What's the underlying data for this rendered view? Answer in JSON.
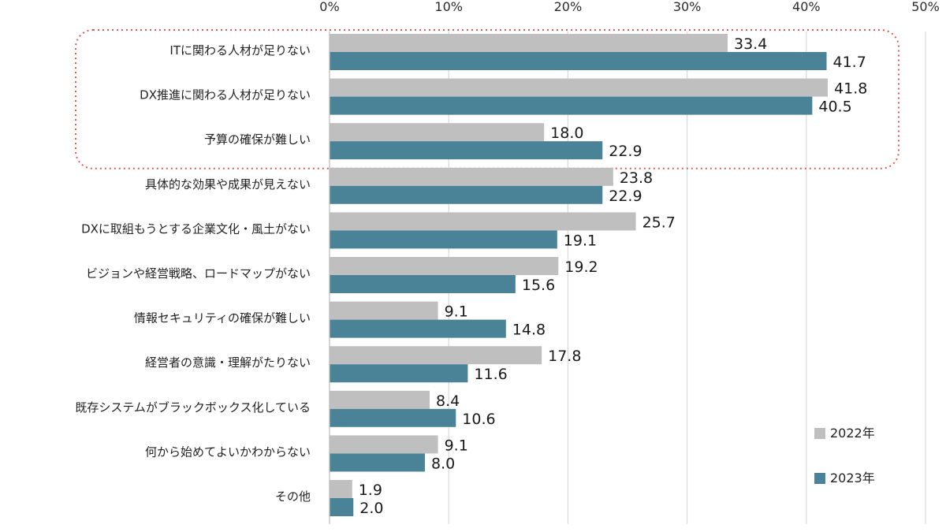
{
  "chart_data": {
    "type": "bar",
    "orientation": "horizontal",
    "categories": [
      "ITに関わる人材が足りない",
      "DX推進に関わる人材が足りない",
      "予算の確保が難しい",
      "具体的な効果や成果が見えない",
      "DXに取組もうとする企業文化・風土がない",
      "ビジョンや経営戦略、ロードマップがない",
      "情報セキュリティの確保が難しい",
      "経営者の意識・理解がたりない",
      "既存システムがブラックボックス化している",
      "何から始めてよいかわからない",
      "その他"
    ],
    "series": [
      {
        "name": "2022年",
        "color": "#bfbfbf",
        "values": [
          33.4,
          41.8,
          18.0,
          23.8,
          25.7,
          19.2,
          9.1,
          17.8,
          8.4,
          9.1,
          1.9
        ],
        "labels": [
          "33.4",
          "41.8",
          "18.0",
          "23.8",
          "25.7",
          "19.2",
          "9.1",
          "17.8",
          "8.4",
          "9.1",
          "1.9"
        ]
      },
      {
        "name": "2023年",
        "color": "#4a8398",
        "values": [
          41.7,
          40.5,
          22.9,
          22.9,
          19.1,
          15.6,
          14.8,
          11.6,
          10.6,
          8.0,
          2.0
        ],
        "labels": [
          "41.7",
          "40.5",
          "22.9",
          "22.9",
          "19.1",
          "15.6",
          "14.8",
          "11.6",
          "10.6",
          "8.0",
          "2.0"
        ]
      }
    ],
    "xlim": [
      0,
      50
    ],
    "xticks": [
      0,
      10,
      20,
      30,
      40,
      50
    ],
    "xtick_labels": [
      "0%",
      "10%",
      "20%",
      "30%",
      "40%",
      "50%"
    ],
    "axis_position": "top",
    "grid": true,
    "legend_position": "bottom-right",
    "highlight": {
      "categories": [
        "ITに関わる人材が足りない",
        "DX推進に関わる人材が足りない",
        "予算の確保が難しい"
      ],
      "style": "dotted-red-rounded-box",
      "color": "#e05a5a"
    }
  }
}
